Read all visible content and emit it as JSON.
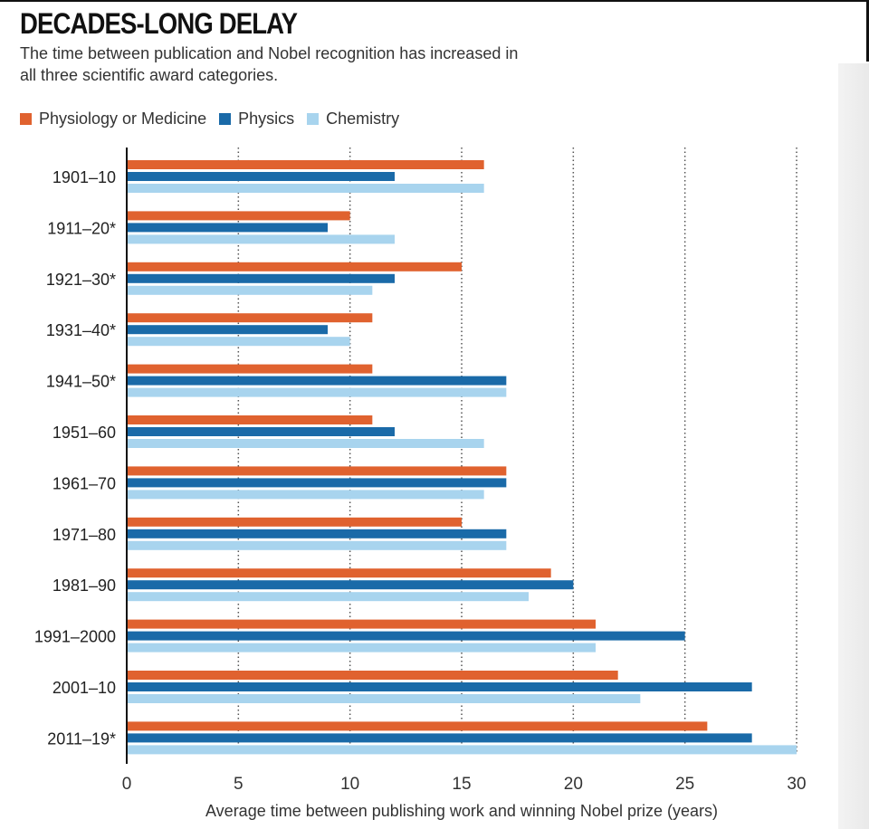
{
  "header": {
    "title": "DECADES-LONG DELAY",
    "subtitle": "The time between publication and Nobel recognition has increased in all three scientific award categories."
  },
  "colors": {
    "medicine": "#e0622f",
    "physics": "#1a6aa8",
    "chemistry": "#a8d4ee",
    "grid": "#555555",
    "axis": "#111111"
  },
  "legend": [
    {
      "label": "Physiology or Medicine",
      "color": "#e0622f"
    },
    {
      "label": "Physics",
      "color": "#1a6aa8"
    },
    {
      "label": "Chemistry",
      "color": "#a8d4ee"
    }
  ],
  "chart_data": {
    "type": "bar",
    "orientation": "horizontal",
    "categories": [
      "1901–10",
      "1911–20*",
      "1921–30*",
      "1931–40*",
      "1941–50*",
      "1951–60",
      "1961–70",
      "1971–80",
      "1981–90",
      "1991–2000",
      "2001–10",
      "2011–19*"
    ],
    "series": [
      {
        "name": "Physiology or Medicine",
        "values": [
          16,
          10,
          15,
          11,
          11,
          11,
          17,
          15,
          19,
          21,
          22,
          26
        ]
      },
      {
        "name": "Physics",
        "values": [
          12,
          9,
          12,
          9,
          17,
          12,
          17,
          17,
          20,
          25,
          28,
          28
        ]
      },
      {
        "name": "Chemistry",
        "values": [
          16,
          12,
          11,
          10,
          17,
          16,
          16,
          17,
          18,
          21,
          23,
          30
        ]
      }
    ],
    "xlabel": "Average time between publishing work and winning Nobel prize (years)",
    "xlim": [
      0,
      30
    ],
    "xticks": [
      "0",
      "5",
      "10",
      "15",
      "20",
      "25",
      "30"
    ],
    "grid": "vertical-dotted",
    "legend_position": "top-left"
  }
}
